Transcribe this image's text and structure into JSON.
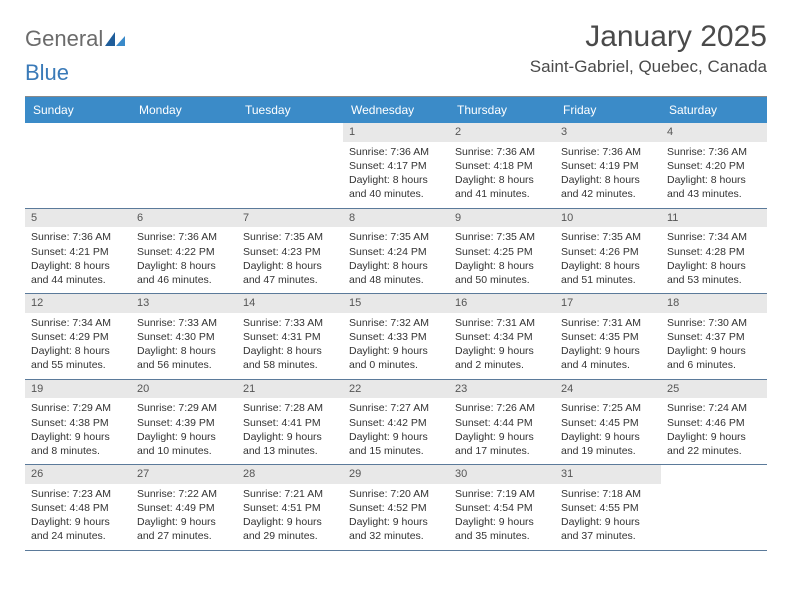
{
  "logo": {
    "general": "General",
    "blue": "Blue"
  },
  "title": "January 2025",
  "location": "Saint-Gabriel, Quebec, Canada",
  "colors": {
    "header_bg": "#3b8bc8",
    "header_text": "#ffffff",
    "daynum_bg": "#e8e8e8",
    "border": "#5b7a9a",
    "top_border": "#8a8a8a",
    "text": "#333333",
    "logo_general": "#6b6b6b",
    "logo_blue": "#3a7ab8"
  },
  "dayNames": [
    "Sunday",
    "Monday",
    "Tuesday",
    "Wednesday",
    "Thursday",
    "Friday",
    "Saturday"
  ],
  "weeks": [
    [
      {
        "n": "",
        "lines": ""
      },
      {
        "n": "",
        "lines": ""
      },
      {
        "n": "",
        "lines": ""
      },
      {
        "n": "1",
        "lines": "Sunrise: 7:36 AM\nSunset: 4:17 PM\nDaylight: 8 hours\nand 40 minutes."
      },
      {
        "n": "2",
        "lines": "Sunrise: 7:36 AM\nSunset: 4:18 PM\nDaylight: 8 hours\nand 41 minutes."
      },
      {
        "n": "3",
        "lines": "Sunrise: 7:36 AM\nSunset: 4:19 PM\nDaylight: 8 hours\nand 42 minutes."
      },
      {
        "n": "4",
        "lines": "Sunrise: 7:36 AM\nSunset: 4:20 PM\nDaylight: 8 hours\nand 43 minutes."
      }
    ],
    [
      {
        "n": "5",
        "lines": "Sunrise: 7:36 AM\nSunset: 4:21 PM\nDaylight: 8 hours\nand 44 minutes."
      },
      {
        "n": "6",
        "lines": "Sunrise: 7:36 AM\nSunset: 4:22 PM\nDaylight: 8 hours\nand 46 minutes."
      },
      {
        "n": "7",
        "lines": "Sunrise: 7:35 AM\nSunset: 4:23 PM\nDaylight: 8 hours\nand 47 minutes."
      },
      {
        "n": "8",
        "lines": "Sunrise: 7:35 AM\nSunset: 4:24 PM\nDaylight: 8 hours\nand 48 minutes."
      },
      {
        "n": "9",
        "lines": "Sunrise: 7:35 AM\nSunset: 4:25 PM\nDaylight: 8 hours\nand 50 minutes."
      },
      {
        "n": "10",
        "lines": "Sunrise: 7:35 AM\nSunset: 4:26 PM\nDaylight: 8 hours\nand 51 minutes."
      },
      {
        "n": "11",
        "lines": "Sunrise: 7:34 AM\nSunset: 4:28 PM\nDaylight: 8 hours\nand 53 minutes."
      }
    ],
    [
      {
        "n": "12",
        "lines": "Sunrise: 7:34 AM\nSunset: 4:29 PM\nDaylight: 8 hours\nand 55 minutes."
      },
      {
        "n": "13",
        "lines": "Sunrise: 7:33 AM\nSunset: 4:30 PM\nDaylight: 8 hours\nand 56 minutes."
      },
      {
        "n": "14",
        "lines": "Sunrise: 7:33 AM\nSunset: 4:31 PM\nDaylight: 8 hours\nand 58 minutes."
      },
      {
        "n": "15",
        "lines": "Sunrise: 7:32 AM\nSunset: 4:33 PM\nDaylight: 9 hours\nand 0 minutes."
      },
      {
        "n": "16",
        "lines": "Sunrise: 7:31 AM\nSunset: 4:34 PM\nDaylight: 9 hours\nand 2 minutes."
      },
      {
        "n": "17",
        "lines": "Sunrise: 7:31 AM\nSunset: 4:35 PM\nDaylight: 9 hours\nand 4 minutes."
      },
      {
        "n": "18",
        "lines": "Sunrise: 7:30 AM\nSunset: 4:37 PM\nDaylight: 9 hours\nand 6 minutes."
      }
    ],
    [
      {
        "n": "19",
        "lines": "Sunrise: 7:29 AM\nSunset: 4:38 PM\nDaylight: 9 hours\nand 8 minutes."
      },
      {
        "n": "20",
        "lines": "Sunrise: 7:29 AM\nSunset: 4:39 PM\nDaylight: 9 hours\nand 10 minutes."
      },
      {
        "n": "21",
        "lines": "Sunrise: 7:28 AM\nSunset: 4:41 PM\nDaylight: 9 hours\nand 13 minutes."
      },
      {
        "n": "22",
        "lines": "Sunrise: 7:27 AM\nSunset: 4:42 PM\nDaylight: 9 hours\nand 15 minutes."
      },
      {
        "n": "23",
        "lines": "Sunrise: 7:26 AM\nSunset: 4:44 PM\nDaylight: 9 hours\nand 17 minutes."
      },
      {
        "n": "24",
        "lines": "Sunrise: 7:25 AM\nSunset: 4:45 PM\nDaylight: 9 hours\nand 19 minutes."
      },
      {
        "n": "25",
        "lines": "Sunrise: 7:24 AM\nSunset: 4:46 PM\nDaylight: 9 hours\nand 22 minutes."
      }
    ],
    [
      {
        "n": "26",
        "lines": "Sunrise: 7:23 AM\nSunset: 4:48 PM\nDaylight: 9 hours\nand 24 minutes."
      },
      {
        "n": "27",
        "lines": "Sunrise: 7:22 AM\nSunset: 4:49 PM\nDaylight: 9 hours\nand 27 minutes."
      },
      {
        "n": "28",
        "lines": "Sunrise: 7:21 AM\nSunset: 4:51 PM\nDaylight: 9 hours\nand 29 minutes."
      },
      {
        "n": "29",
        "lines": "Sunrise: 7:20 AM\nSunset: 4:52 PM\nDaylight: 9 hours\nand 32 minutes."
      },
      {
        "n": "30",
        "lines": "Sunrise: 7:19 AM\nSunset: 4:54 PM\nDaylight: 9 hours\nand 35 minutes."
      },
      {
        "n": "31",
        "lines": "Sunrise: 7:18 AM\nSunset: 4:55 PM\nDaylight: 9 hours\nand 37 minutes."
      },
      {
        "n": "",
        "lines": ""
      }
    ]
  ]
}
